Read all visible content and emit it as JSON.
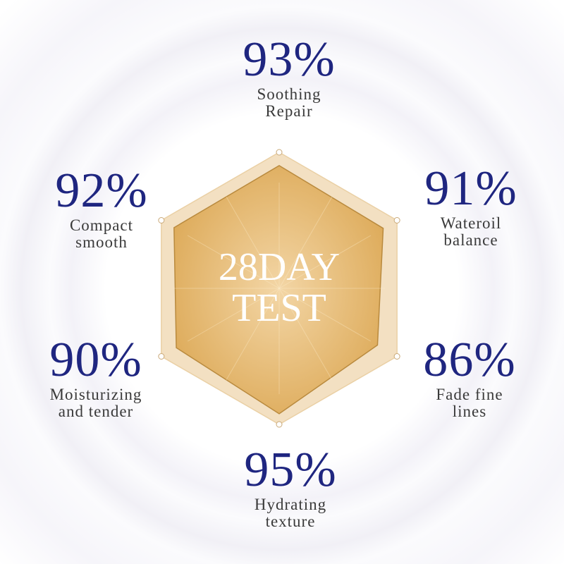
{
  "chart_data": {
    "type": "radar",
    "center_title": [
      "28DAY",
      "TEST"
    ],
    "categories": [
      "Soothing Repair",
      "Wateroil balance",
      "Fade fine lines",
      "Hydrating texture",
      "Moisturizing and tender",
      "Compact smooth"
    ],
    "value_labels": [
      "93%",
      "91%",
      "86%",
      "95%",
      "90%",
      "92%"
    ],
    "values": [
      93,
      91,
      86,
      95,
      90,
      92
    ],
    "range": [
      0,
      100
    ],
    "colors": {
      "fill": "#e4b163",
      "outer": "#f3dfbf",
      "text": "#1f2680"
    }
  }
}
